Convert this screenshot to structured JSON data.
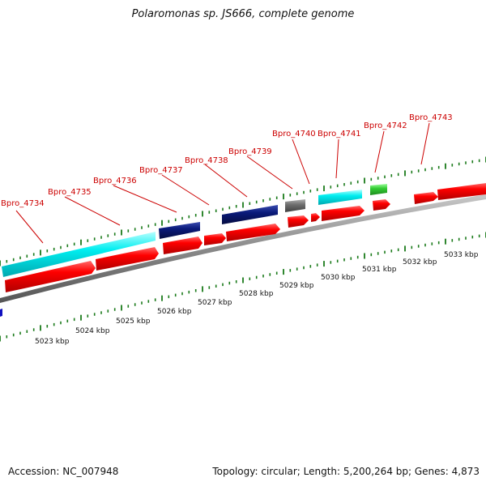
{
  "title": "Polaromonas sp. JS666, complete genome",
  "footer": {
    "accession": "Accession: NC_007948",
    "summary": "Topology: circular; Length: 5,200,264 bp; Genes: 4,873"
  },
  "colors": {
    "cds_forward": "#ff0000",
    "feature_cyan": "#00e5ee",
    "feature_navy": "#0a1a7a",
    "feature_gray": "#707070",
    "feature_green": "#33cc33",
    "label_red": "#cc0000",
    "tick_green": "#1a7a1a",
    "backbone": "#8a8a8a"
  },
  "gene_labels": [
    "Bpro_4734",
    "Bpro_4735",
    "Bpro_4736",
    "Bpro_4737",
    "Bpro_4738",
    "Bpro_4739",
    "Bpro_4740",
    "Bpro_4741",
    "Bpro_4742",
    "Bpro_4743"
  ],
  "kbp_labels": [
    "5023 kbp",
    "5024 kbp",
    "5025 kbp",
    "5026 kbp",
    "5027 kbp",
    "5028 kbp",
    "5029 kbp",
    "5030 kbp",
    "5031 kbp",
    "5032 kbp",
    "5033 kbp"
  ]
}
